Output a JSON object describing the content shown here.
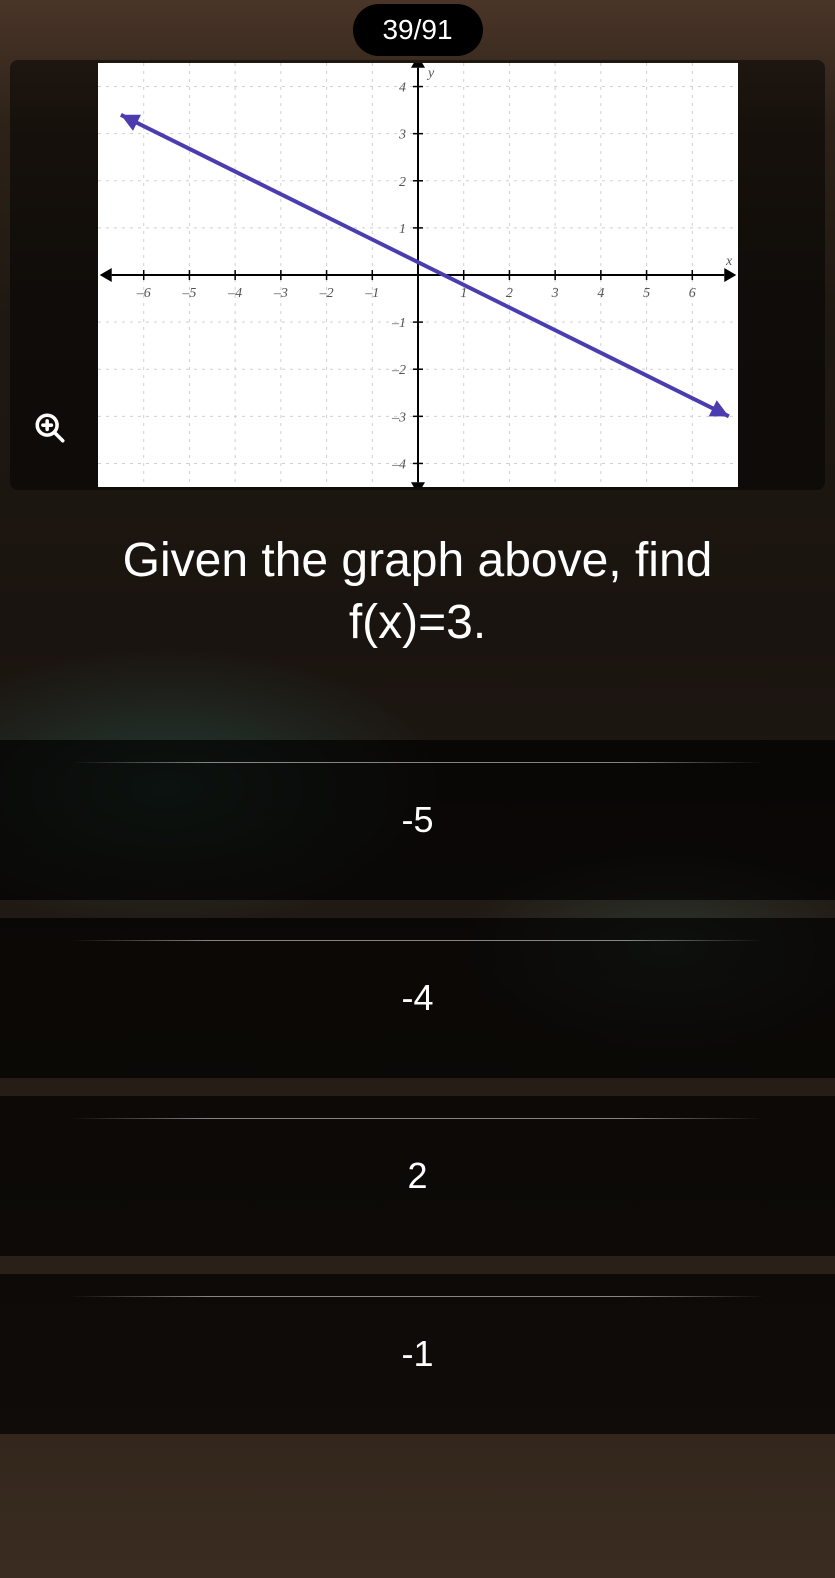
{
  "counter": "39/91",
  "question_line1": "Given the graph above, find",
  "question_line2": "f(x)=3.",
  "answers": [
    "-5",
    "-4",
    "2",
    "-1"
  ],
  "chart": {
    "type": "line",
    "xlim": [
      -7,
      7
    ],
    "ylim": [
      -4.5,
      4.5
    ],
    "xticks": [
      -6,
      -5,
      -4,
      -3,
      -2,
      -1,
      1,
      2,
      3,
      4,
      5,
      6
    ],
    "yticks": [
      -4,
      -3,
      -2,
      -1,
      1,
      2,
      3,
      4
    ],
    "axis_label_x": "x",
    "axis_label_y": "y",
    "line_points": [
      [
        -6.5,
        3.4
      ],
      [
        6.8,
        -3.0
      ]
    ],
    "line_color": "#4b3db0",
    "line_width": 4,
    "grid_color": "#d0d0d0",
    "axis_color": "#000000",
    "tick_font_size": 14,
    "background_color": "#ffffff"
  },
  "colors": {
    "pill_bg": "#000000",
    "text": "#ffffff",
    "answer_bg": "rgba(0,0,0,0.68)",
    "page_bg": "#2a1f18"
  }
}
